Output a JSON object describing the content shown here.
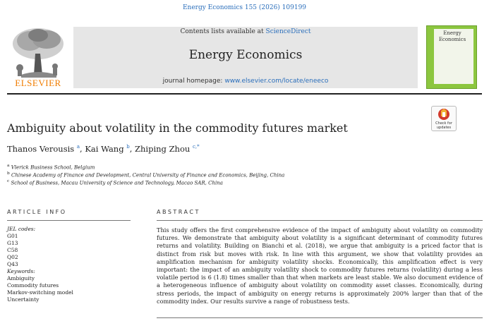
{
  "citation": "Energy Economics 155 (2026) 109199",
  "header": {
    "contents_prefix": "Contents lists available at ",
    "contents_link": "ScienceDirect",
    "journal_title": "Energy Economics",
    "homepage_prefix": "journal homepage: ",
    "homepage_link": "www.elsevier.com/locate/eneeco",
    "publisher": "ELSEVIER"
  },
  "cover": {
    "title": "Energy\nEconomics"
  },
  "check_updates": {
    "label": "Check for updates"
  },
  "article": {
    "title": "Ambiguity about volatility in the commodity futures market",
    "authors": [
      {
        "name": "Thanos Verousis",
        "sup": "a"
      },
      {
        "name": "Kai Wang",
        "sup": "b"
      },
      {
        "name": "Zhiping Zhou",
        "sup": "c,*"
      }
    ],
    "affiliations": [
      {
        "sup": "a",
        "text": "Vlerick Business School, Belgium"
      },
      {
        "sup": "b",
        "text": "Chinese Academy of Finance and Development, Central University of Finance and Economics, Beijing, China"
      },
      {
        "sup": "c",
        "text": "School of Business, Macau University of Science and Technology, Macao SAR, China"
      }
    ]
  },
  "article_info": {
    "heading": "ARTICLE INFO",
    "jel_label": "JEL codes:",
    "jel_codes": [
      "G01",
      "G13",
      "C58",
      "Q02",
      "Q43"
    ],
    "keywords_label": "Keywords:",
    "keywords": [
      "Ambiguity",
      "Commodity futures",
      "Markov-switching model",
      "Uncertainty"
    ]
  },
  "abstract": {
    "heading": "ABSTRACT",
    "text": "This study offers the first comprehensive evidence of the impact of ambiguity about volatility on commodity futures. We demonstrate that ambiguity about volatility is a significant determinant of commodity futures returns and volatility. Building on Bianchi et al. (2018), we argue that ambiguity is a priced factor that is distinct from risk but moves with risk. In line with this argument, we show that volatility provides an amplification mechanism for ambiguity volatility shocks. Economically, this amplification effect is very important: the impact of an ambiguity volatility shock to commodity futures returns (volatility) during a less volatile period is 6 (1.8) times smaller than that when markets are least stable. We also document evidence of a heterogeneous influence of ambiguity about volatility on commodity asset classes. Economically, during stress periods, the impact of ambiguity on energy returns is approximately 200% larger than that of the commodity index. Our results survive a range of robustness tests."
  },
  "colors": {
    "link": "#2a6ebb",
    "elsevier_orange": "#f07c00",
    "cover_green": "#8cc63f",
    "header_gray": "#e6e6e6"
  }
}
